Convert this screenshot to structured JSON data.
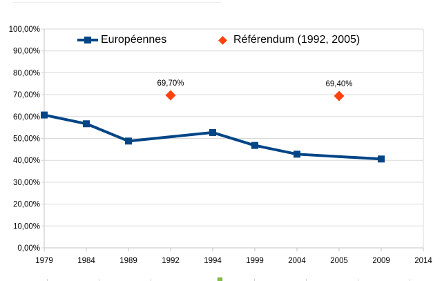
{
  "chart_data": {
    "type": "line",
    "title": "",
    "xlabel": "",
    "ylabel": "",
    "categories": [
      "1979",
      "1984",
      "1989",
      "1992",
      "1994",
      "1999",
      "2004",
      "2005",
      "2009",
      "2014"
    ],
    "series": [
      {
        "name": "Européennes",
        "color": "#004586",
        "marker": "square",
        "line": true,
        "values": [
          60.7,
          56.7,
          48.8,
          null,
          52.7,
          46.8,
          42.8,
          null,
          40.6,
          null
        ],
        "data_labels": [
          null,
          null,
          null,
          null,
          null,
          null,
          null,
          null,
          null,
          null
        ]
      },
      {
        "name": "Référendum (1992, 2005)",
        "color": "#FF420E",
        "marker": "diamond",
        "line": false,
        "values": [
          null,
          null,
          null,
          69.7,
          null,
          null,
          null,
          69.4,
          null,
          null
        ],
        "data_labels": [
          null,
          null,
          null,
          "69,70%",
          null,
          null,
          null,
          "69,40%",
          null,
          null
        ]
      }
    ],
    "ylim": [
      0,
      100
    ],
    "y_tick_step": 10,
    "y_tick_labels": [
      "0,00%",
      "10,00%",
      "20,00%",
      "30,00%",
      "40,00%",
      "50,00%",
      "60,00%",
      "70,00%",
      "80,00%",
      "90,00%",
      "100,00%"
    ],
    "grid": "horizontal",
    "legend_position": "top-inside"
  },
  "legend": {
    "items": [
      {
        "label": "Européennes"
      },
      {
        "label": "Référendum (1992, 2005)"
      }
    ]
  },
  "colors": {
    "series1": "#004586",
    "series2": "#FF420E",
    "gridline": "#d9d9d9",
    "axis": "#c3c3c3",
    "text": "#000000",
    "selection_handle": "#84c242"
  }
}
